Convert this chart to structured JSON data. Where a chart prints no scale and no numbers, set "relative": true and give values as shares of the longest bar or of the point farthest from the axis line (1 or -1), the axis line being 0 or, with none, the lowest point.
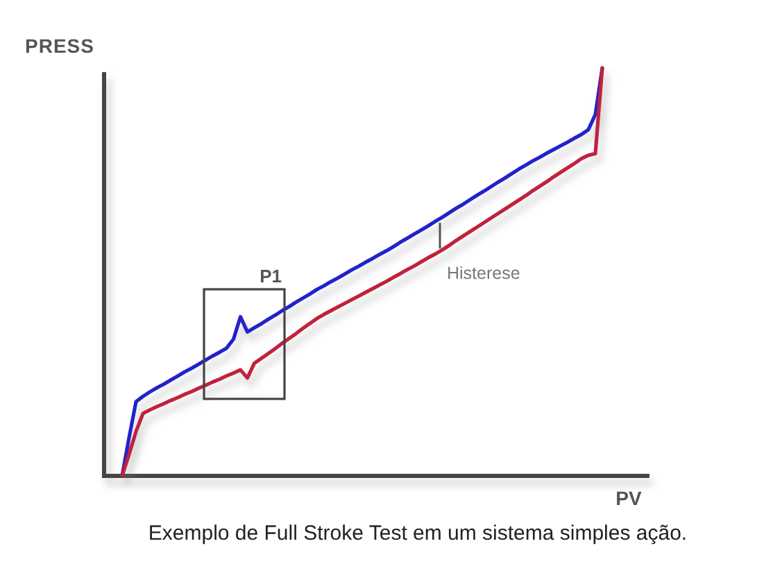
{
  "chart_data": {
    "type": "line",
    "relative": true,
    "xlabel": "PV",
    "ylabel": "PRESS",
    "categories": [
      null,
      null,
      null,
      null,
      null,
      null,
      null,
      null,
      null,
      null,
      null,
      null,
      null,
      null,
      null,
      null,
      null,
      null,
      null,
      null,
      null,
      null,
      null,
      null,
      null,
      null,
      null,
      null,
      null,
      null,
      null,
      null,
      null,
      null,
      null,
      null,
      null,
      null,
      null,
      null,
      null,
      null,
      null,
      null,
      null,
      null,
      null,
      null,
      null,
      null,
      null,
      null,
      null,
      null,
      null,
      null,
      null,
      null,
      null,
      null,
      null,
      null,
      null,
      null,
      null,
      null,
      null,
      null,
      null,
      null
    ],
    "series": [
      {
        "color": "#2020cc",
        "values": [
          0,
          0.094,
          0.182,
          0.195,
          0.206,
          0.216,
          0.225,
          0.235,
          0.245,
          0.255,
          0.264,
          0.274,
          0.284,
          0.294,
          0.303,
          0.313,
          0.335,
          0.39,
          0.353,
          0.363,
          0.373,
          0.384,
          0.394,
          0.405,
          0.415,
          0.426,
          0.436,
          0.446,
          0.457,
          0.466,
          0.476,
          0.485,
          0.495,
          0.505,
          0.514,
          0.524,
          0.533,
          0.543,
          0.552,
          0.562,
          0.573,
          0.583,
          0.593,
          0.603,
          0.613,
          0.624,
          0.634,
          0.645,
          0.656,
          0.666,
          0.677,
          0.688,
          0.698,
          0.709,
          0.72,
          0.73,
          0.741,
          0.752,
          0.762,
          0.772,
          0.781,
          0.791,
          0.8,
          0.809,
          0.818,
          0.828,
          0.837,
          0.849,
          0.886,
          1
        ]
      },
      {
        "color": "#c0203c",
        "values": [
          0,
          0.053,
          0.109,
          0.153,
          0.162,
          0.17,
          0.177,
          0.185,
          0.192,
          0.2,
          0.207,
          0.215,
          0.222,
          0.23,
          0.237,
          0.245,
          0.252,
          0.26,
          0.24,
          0.276,
          0.288,
          0.3,
          0.312,
          0.325,
          0.337,
          0.349,
          0.362,
          0.374,
          0.386,
          0.396,
          0.405,
          0.414,
          0.423,
          0.432,
          0.441,
          0.45,
          0.459,
          0.468,
          0.477,
          0.487,
          0.496,
          0.506,
          0.515,
          0.525,
          0.535,
          0.544,
          0.554,
          0.565,
          0.577,
          0.588,
          0.599,
          0.61,
          0.621,
          0.632,
          0.643,
          0.654,
          0.665,
          0.676,
          0.687,
          0.699,
          0.71,
          0.721,
          0.733,
          0.744,
          0.755,
          0.766,
          0.778,
          0.786,
          0.79,
          1
        ]
      }
    ],
    "annotations": [
      "P1",
      "Histerese",
      "Exemplo de Full Stroke Test em um sistema simples ação."
    ]
  }
}
